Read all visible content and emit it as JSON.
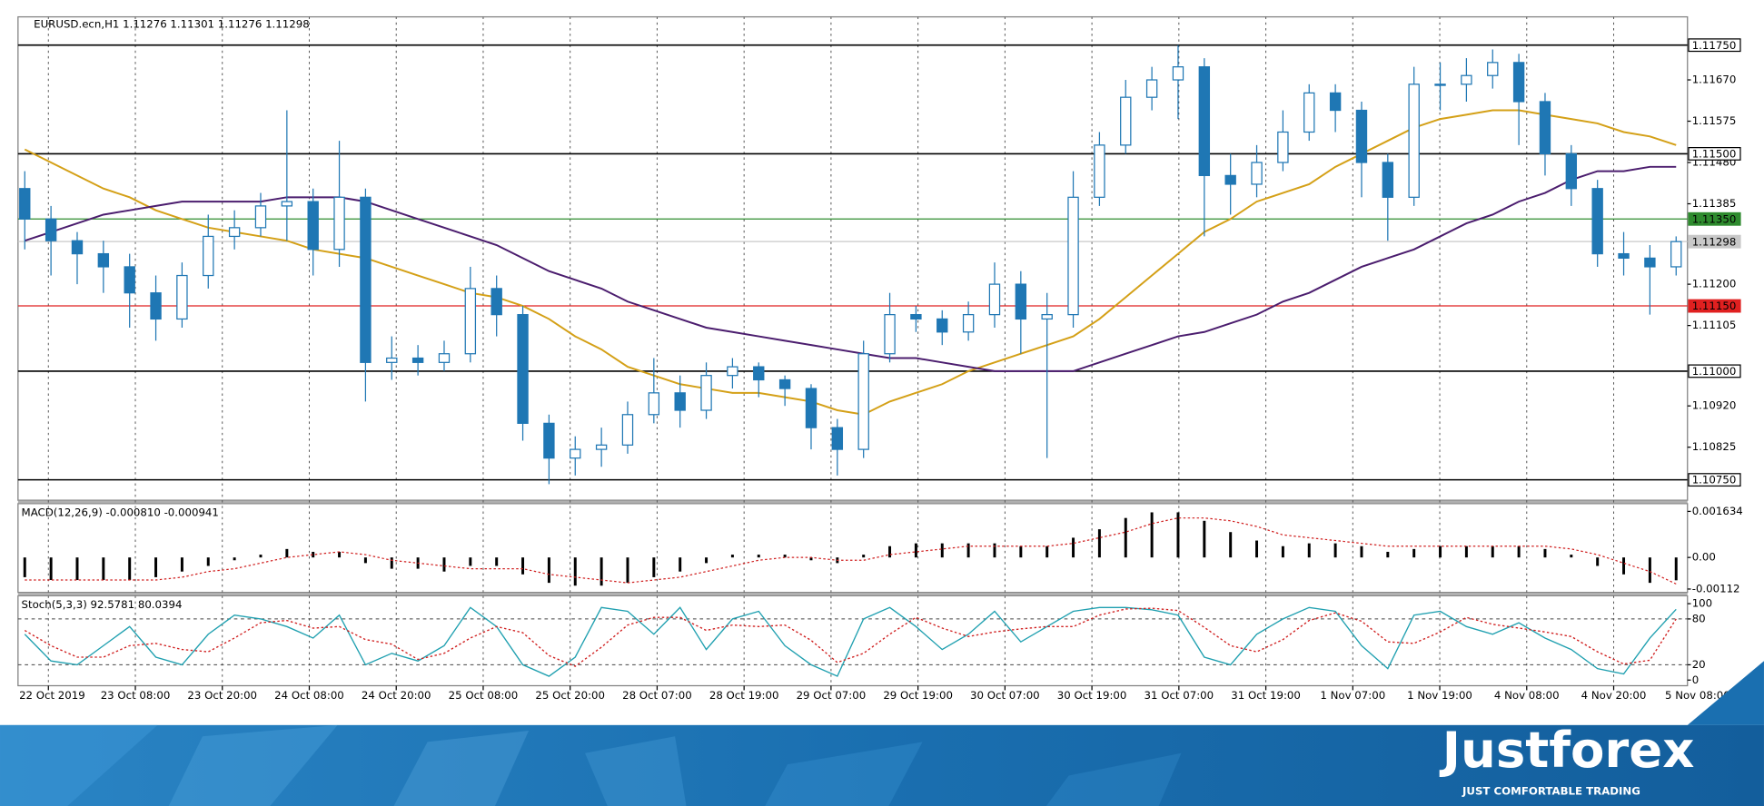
{
  "chart_data": [
    {
      "type": "candlestick",
      "title": "EURUSD.ecn,H1  1.11276 1.11301 1.11276 1.11298",
      "x_labels": [
        "22 Oct 2019",
        "23 Oct 08:00",
        "23 Oct 20:00",
        "24 Oct 08:00",
        "24 Oct 20:00",
        "25 Oct 08:00",
        "25 Oct 20:00",
        "28 Oct 07:00",
        "28 Oct 19:00",
        "29 Oct 07:00",
        "29 Oct 19:00",
        "30 Oct 07:00",
        "30 Oct 19:00",
        "31 Oct 07:00",
        "31 Oct 19:00",
        "1 Nov 07:00",
        "1 Nov 19:00",
        "4 Nov 08:00",
        "4 Nov 20:00",
        "5 Nov 08:00"
      ],
      "open": [
        1.1142,
        1.1135,
        1.113,
        1.1127,
        1.1124,
        1.1118,
        1.1112,
        1.1122,
        1.1131,
        1.1133,
        1.1138,
        1.1139,
        1.1128,
        1.114,
        1.1102,
        1.1103,
        1.1102,
        1.1104,
        1.1119,
        1.1113,
        1.1088,
        1.108,
        1.1082,
        1.1083,
        1.109,
        1.1095,
        1.1091,
        1.1099,
        1.1101,
        1.1098,
        1.1096,
        1.1087,
        1.1082,
        1.1104,
        1.1113,
        1.1112,
        1.1109,
        1.1113,
        1.112,
        1.1112,
        1.1113,
        1.114,
        1.1152,
        1.1163,
        1.1167,
        1.117,
        1.1145,
        1.1143,
        1.1148,
        1.1155,
        1.1164,
        1.116,
        1.1148,
        1.114,
        1.1166,
        1.1166,
        1.1168,
        1.1171,
        1.1162,
        1.115,
        1.1142,
        1.1127,
        1.1126,
        1.1124
      ],
      "high": [
        1.1146,
        1.1138,
        1.1132,
        1.113,
        1.1127,
        1.1122,
        1.1125,
        1.1136,
        1.1137,
        1.1141,
        1.116,
        1.1142,
        1.1153,
        1.1142,
        1.1108,
        1.1106,
        1.1107,
        1.1124,
        1.1122,
        1.1115,
        1.109,
        1.1085,
        1.1087,
        1.1093,
        1.1103,
        1.1099,
        1.1102,
        1.1103,
        1.1102,
        1.1099,
        1.1097,
        1.1089,
        1.1107,
        1.1118,
        1.1115,
        1.1114,
        1.1116,
        1.1125,
        1.1123,
        1.1118,
        1.1146,
        1.1155,
        1.1167,
        1.117,
        1.1175,
        1.1172,
        1.115,
        1.1152,
        1.116,
        1.1166,
        1.1166,
        1.1162,
        1.115,
        1.117,
        1.1171,
        1.1172,
        1.1174,
        1.1173,
        1.1164,
        1.1152,
        1.1144,
        1.1132,
        1.1129,
        1.1131
      ],
      "low": [
        1.1128,
        1.1122,
        1.112,
        1.1118,
        1.111,
        1.1107,
        1.111,
        1.1119,
        1.1128,
        1.1131,
        1.113,
        1.1122,
        1.1124,
        1.1093,
        1.1098,
        1.1099,
        1.11,
        1.1102,
        1.1108,
        1.1084,
        1.1074,
        1.1076,
        1.1078,
        1.1081,
        1.1088,
        1.1087,
        1.1089,
        1.1096,
        1.1094,
        1.1092,
        1.1082,
        1.1076,
        1.108,
        1.1102,
        1.1109,
        1.1106,
        1.1107,
        1.111,
        1.1104,
        1.108,
        1.111,
        1.1138,
        1.115,
        1.116,
        1.1158,
        1.1131,
        1.1136,
        1.114,
        1.1146,
        1.1153,
        1.1155,
        1.114,
        1.113,
        1.1138,
        1.116,
        1.1162,
        1.1165,
        1.1152,
        1.1145,
        1.1138,
        1.1124,
        1.1122,
        1.1113,
        1.1122
      ],
      "close": [
        1.1135,
        1.113,
        1.1127,
        1.1124,
        1.1118,
        1.1112,
        1.1122,
        1.1131,
        1.1133,
        1.1138,
        1.1139,
        1.1128,
        1.114,
        1.1102,
        1.1103,
        1.1102,
        1.1104,
        1.1119,
        1.1113,
        1.1088,
        1.108,
        1.1082,
        1.1083,
        1.109,
        1.1095,
        1.1091,
        1.1099,
        1.1101,
        1.1098,
        1.1096,
        1.1087,
        1.1082,
        1.1104,
        1.1113,
        1.1112,
        1.1109,
        1.1113,
        1.112,
        1.1112,
        1.1113,
        1.114,
        1.1152,
        1.1163,
        1.1167,
        1.117,
        1.1145,
        1.1143,
        1.1148,
        1.1155,
        1.1164,
        1.116,
        1.1148,
        1.114,
        1.1166,
        1.1166,
        1.1168,
        1.1171,
        1.1162,
        1.115,
        1.1142,
        1.1127,
        1.1126,
        1.1124,
        1.11298
      ],
      "up_color": "#ffffff",
      "down_color": "#1f77b4",
      "edge_color": "#1f77b4",
      "series": [
        {
          "color": "#d4a017",
          "values": [
            1.1151,
            1.1148,
            1.1145,
            1.1142,
            1.114,
            1.1137,
            1.1135,
            1.1133,
            1.1132,
            1.1131,
            1.113,
            1.1128,
            1.1127,
            1.1126,
            1.1124,
            1.1122,
            1.112,
            1.1118,
            1.1117,
            1.1115,
            1.1112,
            1.1108,
            1.1105,
            1.1101,
            1.1099,
            1.1097,
            1.1096,
            1.1095,
            1.1095,
            1.1094,
            1.1093,
            1.1091,
            1.109,
            1.1093,
            1.1095,
            1.1097,
            1.11,
            1.1102,
            1.1104,
            1.1106,
            1.1108,
            1.1112,
            1.1117,
            1.1122,
            1.1127,
            1.1132,
            1.1135,
            1.1139,
            1.1141,
            1.1143,
            1.1147,
            1.115,
            1.1153,
            1.1156,
            1.1158,
            1.1159,
            1.116,
            1.116,
            1.1159,
            1.1158,
            1.1157,
            1.1155,
            1.1154,
            1.1152
          ]
        },
        {
          "color": "#4b1d6e",
          "values": [
            1.113,
            1.1132,
            1.1134,
            1.1136,
            1.1137,
            1.1138,
            1.1139,
            1.1139,
            1.1139,
            1.1139,
            1.114,
            1.114,
            1.114,
            1.1139,
            1.1137,
            1.1135,
            1.1133,
            1.1131,
            1.1129,
            1.1126,
            1.1123,
            1.1121,
            1.1119,
            1.1116,
            1.1114,
            1.1112,
            1.111,
            1.1109,
            1.1108,
            1.1107,
            1.1106,
            1.1105,
            1.1104,
            1.1103,
            1.1103,
            1.1102,
            1.1101,
            1.11,
            1.11,
            1.11,
            1.11,
            1.1102,
            1.1104,
            1.1106,
            1.1108,
            1.1109,
            1.1111,
            1.1113,
            1.1116,
            1.1118,
            1.1121,
            1.1124,
            1.1126,
            1.1128,
            1.1131,
            1.1134,
            1.1136,
            1.1139,
            1.1141,
            1.1144,
            1.1146,
            1.1146,
            1.1147,
            1.1147
          ]
        }
      ],
      "levels": [
        {
          "value": 1.1175,
          "label": "1.11750",
          "color": "#000000",
          "text_color": "#000000"
        },
        {
          "value": 1.115,
          "label": "1.11500",
          "color": "#000000",
          "text_color": "#000000"
        },
        {
          "value": 1.1135,
          "label": "1.11350",
          "color": "#2e8b2e",
          "text_color": "#ffffff"
        },
        {
          "value": 1.11298,
          "label": "1.11298",
          "color": "#c8c8c8",
          "text_color": "#000000"
        },
        {
          "value": 1.1115,
          "label": "1.11150",
          "color": "#e02020",
          "text_color": "#ffffff"
        },
        {
          "value": 1.11,
          "label": "1.11000",
          "color": "#000000",
          "text_color": "#000000"
        },
        {
          "value": 1.1075,
          "label": "1.10750",
          "color": "#000000",
          "text_color": "#000000"
        }
      ],
      "ylim": [
        1.10703,
        1.11815
      ],
      "yticks": [
        {
          "value": 1.1167,
          "label": "1.11670"
        },
        1.11575,
        {
          "value": 1.1148,
          "label": "1.11480"
        },
        1.11385,
        {
          "value": 1.112,
          "label": "1.11200"
        },
        1.11105,
        {
          "value": 1.1092,
          "label": "1.10920"
        },
        1.10825
      ]
    },
    {
      "type": "bar",
      "title": "MACD(12,26,9) -0.000810 -0.000941",
      "series": [
        {
          "color": "#000000",
          "values": [
            -0.0007,
            -0.0008,
            -0.0008,
            -0.0008,
            -0.0008,
            -0.0007,
            -0.0005,
            -0.0003,
            -0.0001,
            0.0001,
            0.0003,
            0.0002,
            0.0002,
            -0.0002,
            -0.0004,
            -0.0004,
            -0.0005,
            -0.0003,
            -0.0003,
            -0.0006,
            -0.0009,
            -0.001,
            -0.001,
            -0.0009,
            -0.0007,
            -0.0005,
            -0.0002,
            0.0001,
            0.0001,
            0.0001,
            -0.0001,
            -0.0002,
            0.0001,
            0.0004,
            0.0005,
            0.0005,
            0.0005,
            0.0005,
            0.0004,
            0.0004,
            0.0007,
            0.001,
            0.0014,
            0.0016,
            0.0016,
            0.0013,
            0.0009,
            0.0006,
            0.0004,
            0.0005,
            0.0005,
            0.0004,
            0.0002,
            0.0003,
            0.0004,
            0.0004,
            0.0004,
            0.0004,
            0.0003,
            0.0001,
            -0.0003,
            -0.0006,
            -0.0009,
            -0.00081
          ]
        },
        {
          "color": "#d02020",
          "dashed": true,
          "values": [
            -0.0008,
            -0.0008,
            -0.0008,
            -0.0008,
            -0.0008,
            -0.0008,
            -0.0007,
            -0.0005,
            -0.0004,
            -0.0002,
            0.0,
            0.0001,
            0.0002,
            0.0001,
            -0.0001,
            -0.0002,
            -0.0003,
            -0.0004,
            -0.0004,
            -0.0004,
            -0.0006,
            -0.0007,
            -0.0008,
            -0.0009,
            -0.0008,
            -0.0007,
            -0.0005,
            -0.0003,
            -0.0001,
            0.0,
            0.0,
            -0.0001,
            -0.0001,
            0.0001,
            0.0002,
            0.0003,
            0.0004,
            0.0004,
            0.0004,
            0.0004,
            0.0005,
            0.0007,
            0.0009,
            0.0012,
            0.0014,
            0.0014,
            0.0013,
            0.0011,
            0.0008,
            0.0007,
            0.0006,
            0.0005,
            0.0004,
            0.0004,
            0.0004,
            0.0004,
            0.0004,
            0.0004,
            0.0004,
            0.0003,
            0.0001,
            -0.0002,
            -0.0005,
            -0.00094
          ]
        }
      ],
      "ylim": [
        -0.00124,
        0.00191
      ],
      "yticks": [
        0.001634,
        {
          "value": 0,
          "label": "0.00"
        },
        -0.00112
      ]
    },
    {
      "type": "line",
      "title": "Stoch(5,3,3) 92.5781 80.0394",
      "series": [
        {
          "color": "#20a0b0",
          "values": [
            60,
            25,
            20,
            45,
            70,
            30,
            20,
            60,
            85,
            80,
            70,
            55,
            85,
            20,
            35,
            25,
            45,
            95,
            70,
            20,
            5,
            30,
            95,
            90,
            60,
            95,
            40,
            80,
            90,
            45,
            20,
            5,
            80,
            95,
            70,
            40,
            60,
            90,
            50,
            70,
            90,
            95,
            95,
            92,
            85,
            30,
            20,
            60,
            80,
            95,
            90,
            45,
            15,
            85,
            90,
            70,
            60,
            75,
            55,
            40,
            15,
            8,
            55,
            92.5781
          ]
        },
        {
          "color": "#d02020",
          "dashed": true,
          "values": [
            65,
            45,
            30,
            30,
            45,
            48,
            40,
            37,
            55,
            75,
            78,
            68,
            70,
            53,
            47,
            27,
            35,
            55,
            70,
            62,
            32,
            18,
            43,
            72,
            82,
            82,
            65,
            72,
            70,
            72,
            52,
            23,
            35,
            60,
            82,
            68,
            57,
            63,
            67,
            70,
            70,
            85,
            93,
            94,
            91,
            69,
            45,
            37,
            53,
            78,
            88,
            77,
            50,
            48,
            63,
            82,
            73,
            68,
            63,
            57,
            37,
            21,
            26,
            80.0394
          ]
        }
      ],
      "levels": [
        80,
        20
      ],
      "ylim": [
        -7.4,
        110.3
      ],
      "yticks": [
        100,
        80,
        20,
        0
      ]
    }
  ],
  "footer": {
    "brand": "Justforex",
    "tagline": "JUST COMFORTABLE TRADING"
  }
}
